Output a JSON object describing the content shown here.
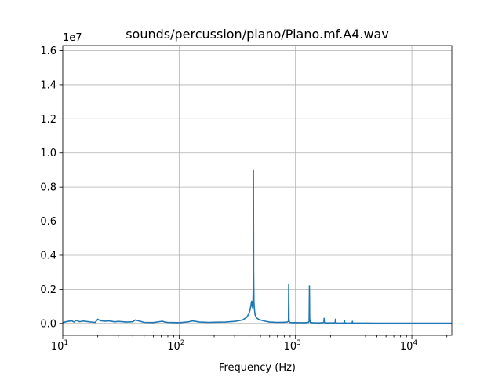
{
  "chart_data": {
    "type": "line",
    "title": "sounds/percussion/piano/Piano.mf.A4.wav",
    "xlabel": "Frequency (Hz)",
    "ylabel": "",
    "x_scale": "log",
    "xlim": [
      10,
      22050
    ],
    "ylim": [
      -700000,
      16300000
    ],
    "y_offset_label": "1e7",
    "grid": true,
    "color": "#1f77b4",
    "x_ticks": [
      {
        "value": 10,
        "base": "10",
        "exp": "1"
      },
      {
        "value": 100,
        "base": "10",
        "exp": "2"
      },
      {
        "value": 1000,
        "base": "10",
        "exp": "3"
      },
      {
        "value": 10000,
        "base": "10",
        "exp": "4"
      }
    ],
    "y_ticks": [
      {
        "value": 0,
        "label": "0.0"
      },
      {
        "value": 2000000,
        "label": "0.2"
      },
      {
        "value": 4000000,
        "label": "0.4"
      },
      {
        "value": 6000000,
        "label": "0.6"
      },
      {
        "value": 8000000,
        "label": "0.8"
      },
      {
        "value": 10000000,
        "label": "1.0"
      },
      {
        "value": 12000000,
        "label": "1.2"
      },
      {
        "value": 14000000,
        "label": "1.4"
      },
      {
        "value": 16000000,
        "label": "1.6"
      }
    ],
    "series": [
      {
        "x": [
          10,
          11,
          12,
          12.5,
          13,
          14,
          15,
          17,
          19,
          20,
          21,
          23,
          25,
          28,
          30,
          35,
          40,
          42,
          45,
          50,
          60,
          72,
          75,
          80,
          90,
          100,
          120,
          130,
          150,
          180,
          200,
          250,
          300,
          350,
          380,
          400,
          410,
          420,
          425,
          430,
          433,
          435,
          437,
          440,
          443,
          446,
          450,
          460,
          480,
          500,
          550,
          600,
          700,
          800,
          850,
          870,
          875,
          880,
          885,
          890,
          950,
          1000,
          1100,
          1200,
          1290,
          1310,
          1318,
          1325,
          1340,
          1400,
          1500,
          1600,
          1700,
          1755,
          1762,
          1770,
          1800,
          2000,
          2150,
          2195,
          2205,
          2215,
          2300,
          2500,
          2620,
          2635,
          2650,
          2800,
          3000,
          3070,
          3085,
          3100,
          3300,
          4000,
          5000,
          7000,
          10000,
          15000,
          22050
        ],
        "y": [
          50000,
          120000,
          150000,
          80000,
          180000,
          100000,
          140000,
          90000,
          60000,
          250000,
          160000,
          130000,
          150000,
          90000,
          120000,
          80000,
          100000,
          200000,
          150000,
          60000,
          50000,
          130000,
          80000,
          60000,
          50000,
          40000,
          90000,
          150000,
          80000,
          60000,
          70000,
          80000,
          120000,
          200000,
          350000,
          600000,
          900000,
          1300000,
          1000000,
          900000,
          2000000,
          9000000,
          3000000,
          1200000,
          900000,
          700000,
          500000,
          350000,
          250000,
          200000,
          130000,
          80000,
          60000,
          70000,
          80000,
          120000,
          2300000,
          300000,
          100000,
          60000,
          40000,
          50000,
          40000,
          40000,
          60000,
          120000,
          2200000,
          300000,
          60000,
          40000,
          30000,
          30000,
          40000,
          60000,
          300000,
          60000,
          30000,
          30000,
          30000,
          60000,
          250000,
          40000,
          20000,
          20000,
          30000,
          180000,
          30000,
          20000,
          20000,
          30000,
          120000,
          20000,
          20000,
          15000,
          10000,
          10000,
          10000,
          10000,
          10000
        ]
      }
    ]
  }
}
